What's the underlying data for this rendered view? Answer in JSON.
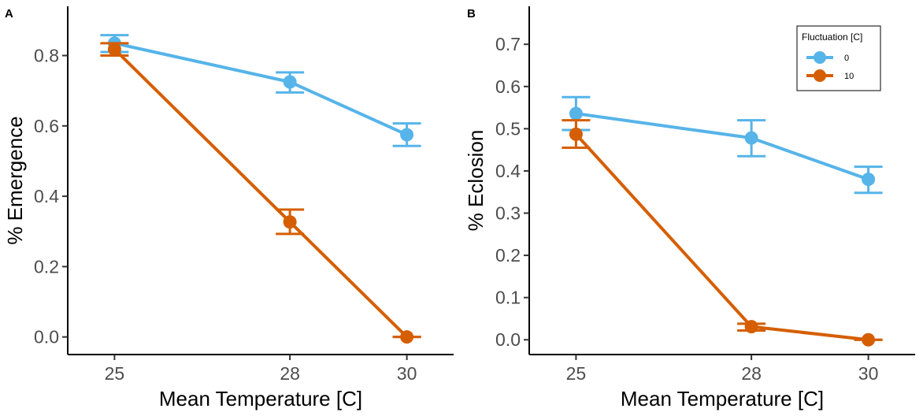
{
  "chart_data": [
    {
      "type": "line",
      "panel_label": "A",
      "xlabel": "Mean Temperature [C]",
      "ylabel": "% Emergence",
      "x": [
        25,
        28,
        30
      ],
      "xticks": [
        "25",
        "28",
        "30"
      ],
      "xlim": [
        24.2,
        30.8
      ],
      "ylim": [
        -0.05,
        0.94
      ],
      "yticks": [
        "0.0",
        "0.2",
        "0.4",
        "0.6",
        "0.8"
      ],
      "ytick_values": [
        0.0,
        0.2,
        0.4,
        0.6,
        0.8
      ],
      "grid": false,
      "series": [
        {
          "name": "0",
          "color": "#56b4e9",
          "values": [
            0.835,
            0.725,
            0.575
          ],
          "err_low": [
            0.81,
            0.695,
            0.543
          ],
          "err_high": [
            0.858,
            0.752,
            0.607
          ]
        },
        {
          "name": "10",
          "color": "#d55e00",
          "values": [
            0.818,
            0.327,
            0.0
          ],
          "err_low": [
            0.8,
            0.293,
            0.0
          ],
          "err_high": [
            0.835,
            0.362,
            0.0
          ]
        }
      ]
    },
    {
      "type": "line",
      "panel_label": "B",
      "xlabel": "Mean Temperature [C]",
      "ylabel": "% Eclosion",
      "x": [
        25,
        28,
        30
      ],
      "xticks": [
        "25",
        "28",
        "30"
      ],
      "xlim": [
        24.2,
        30.8
      ],
      "ylim": [
        -0.035,
        0.79
      ],
      "yticks": [
        "0.0",
        "0.1",
        "0.2",
        "0.3",
        "0.4",
        "0.5",
        "0.6",
        "0.7"
      ],
      "ytick_values": [
        0.0,
        0.1,
        0.2,
        0.3,
        0.4,
        0.5,
        0.6,
        0.7
      ],
      "grid": false,
      "legend": {
        "title": "Fluctuation [C]",
        "position": "top-right"
      },
      "series": [
        {
          "name": "0",
          "color": "#56b4e9",
          "values": [
            0.536,
            0.478,
            0.38
          ],
          "err_low": [
            0.497,
            0.435,
            0.348
          ],
          "err_high": [
            0.575,
            0.52,
            0.41
          ]
        },
        {
          "name": "10",
          "color": "#d55e00",
          "values": [
            0.487,
            0.031,
            0.0
          ],
          "err_low": [
            0.455,
            0.022,
            0.0
          ],
          "err_high": [
            0.52,
            0.038,
            0.0
          ]
        }
      ]
    }
  ]
}
